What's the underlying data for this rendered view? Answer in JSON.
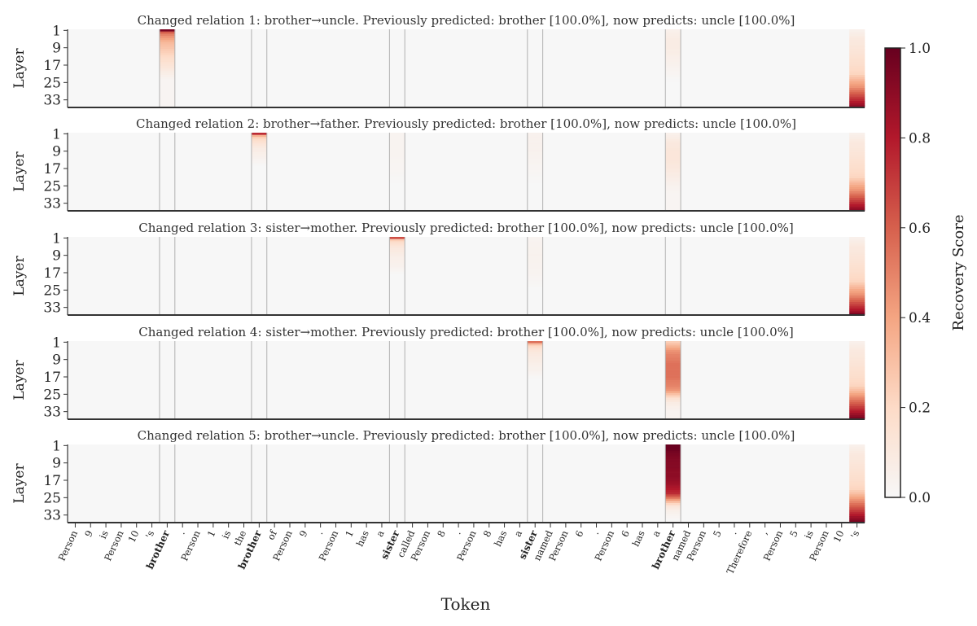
{
  "colorbar": {
    "label": "Recovery Score",
    "ticks": [
      "0.0",
      "0.2",
      "0.4",
      "0.6",
      "0.8",
      "1.0"
    ],
    "tick_values": [
      0,
      0.2,
      0.4,
      0.6,
      0.8,
      1.0
    ],
    "colors": [
      "#f7f7f7",
      "#fddbc7",
      "#f4a582",
      "#d6604d",
      "#b2182b",
      "#67001f"
    ]
  },
  "chart_data": {
    "type": "heatmap",
    "xlabel": "Token",
    "ylabel": "Layer",
    "ytick_labels": [
      "1",
      "9",
      "17",
      "25",
      "33"
    ],
    "num_layers": 36,
    "tokens": [
      "Person",
      "9",
      "is",
      "Person",
      "10",
      "'s",
      "brother",
      ".",
      "Person",
      "1",
      "is",
      "the",
      "brother",
      "of",
      "Person",
      "9",
      ".",
      "Person",
      "1",
      "has",
      "a",
      "sister",
      "called",
      "Person",
      "8",
      ".",
      "Person",
      "8",
      "has",
      "a",
      "sister",
      "named",
      "Person",
      "6",
      ".",
      "Person",
      "6",
      "has",
      "a",
      "brother",
      "named",
      "Person",
      "5",
      ".",
      "Therefore",
      ",",
      "Person",
      "5",
      "is",
      "Person",
      "10",
      "'s"
    ],
    "bold_token_indices": [
      6,
      12,
      21,
      30,
      39
    ],
    "separator_token_indices": [
      6,
      12,
      21,
      30,
      39
    ],
    "value_range": [
      0,
      1
    ],
    "panels": [
      {
        "title": "Changed relation 1: brother→uncle. Previously predicted: brother [100.0%], now predicts: uncle [100.0%]",
        "columns": [
          {
            "token_index": 6,
            "layers": [
              1,
              2,
              3,
              4,
              5,
              6,
              7,
              8,
              9,
              10,
              12,
              14,
              16,
              18,
              20,
              22,
              24
            ],
            "values": [
              0.95,
              0.6,
              0.5,
              0.45,
              0.4,
              0.35,
              0.32,
              0.3,
              0.28,
              0.26,
              0.22,
              0.18,
              0.15,
              0.12,
              0.08,
              0.05,
              0.02
            ]
          },
          {
            "token_index": 39,
            "layers": [
              1,
              5,
              9,
              13,
              17,
              21,
              25
            ],
            "values": [
              0.05,
              0.08,
              0.08,
              0.06,
              0.04,
              0.02,
              0.0
            ]
          },
          {
            "token_index": 51,
            "layers": [
              1,
              5,
              9,
              13,
              17,
              21,
              23,
              25,
              27,
              29,
              31,
              33,
              35,
              36
            ],
            "values": [
              0.05,
              0.1,
              0.12,
              0.15,
              0.18,
              0.22,
              0.3,
              0.38,
              0.45,
              0.55,
              0.65,
              0.75,
              0.85,
              0.9
            ]
          }
        ]
      },
      {
        "title": "Changed relation 2: brother→father. Previously predicted: brother [100.0%], now predicts: uncle [100.0%]",
        "columns": [
          {
            "token_index": 12,
            "layers": [
              1,
              2,
              3,
              4,
              5,
              6,
              7,
              8,
              10,
              12,
              14,
              16
            ],
            "values": [
              0.75,
              0.35,
              0.22,
              0.18,
              0.15,
              0.12,
              0.1,
              0.08,
              0.06,
              0.04,
              0.02,
              0.0
            ]
          },
          {
            "token_index": 21,
            "layers": [
              1,
              9,
              17,
              25
            ],
            "values": [
              0.03,
              0.03,
              0.02,
              0.0
            ]
          },
          {
            "token_index": 30,
            "layers": [
              1,
              9,
              17,
              25
            ],
            "values": [
              0.04,
              0.04,
              0.02,
              0.0
            ]
          },
          {
            "token_index": 39,
            "layers": [
              1,
              5,
              9,
              13,
              17,
              21,
              25,
              29
            ],
            "values": [
              0.05,
              0.1,
              0.12,
              0.12,
              0.1,
              0.07,
              0.04,
              0.02
            ]
          },
          {
            "token_index": 51,
            "layers": [
              1,
              5,
              9,
              13,
              17,
              21,
              23,
              25,
              27,
              29,
              31,
              33,
              35,
              36
            ],
            "values": [
              0.05,
              0.1,
              0.12,
              0.15,
              0.18,
              0.22,
              0.3,
              0.38,
              0.45,
              0.55,
              0.65,
              0.75,
              0.85,
              0.9
            ]
          }
        ]
      },
      {
        "title": "Changed relation 3: sister→mother. Previously predicted: brother [100.0%], now predicts: uncle [100.0%]",
        "columns": [
          {
            "token_index": 21,
            "layers": [
              1,
              2,
              3,
              4,
              5,
              6,
              7,
              8,
              10,
              12,
              14,
              16,
              18
            ],
            "values": [
              0.65,
              0.25,
              0.18,
              0.15,
              0.12,
              0.1,
              0.09,
              0.08,
              0.06,
              0.05,
              0.04,
              0.02,
              0.0
            ]
          },
          {
            "token_index": 30,
            "layers": [
              1,
              9,
              17,
              25
            ],
            "values": [
              0.03,
              0.04,
              0.03,
              0.0
            ]
          },
          {
            "token_index": 51,
            "layers": [
              1,
              5,
              9,
              13,
              17,
              21,
              23,
              25,
              27,
              29,
              31,
              33,
              35,
              36
            ],
            "values": [
              0.05,
              0.1,
              0.12,
              0.15,
              0.18,
              0.22,
              0.3,
              0.38,
              0.45,
              0.55,
              0.65,
              0.75,
              0.85,
              0.95
            ]
          }
        ]
      },
      {
        "title": "Changed relation 4: sister→mother. Previously predicted: brother [100.0%], now predicts: uncle [100.0%]",
        "columns": [
          {
            "token_index": 30,
            "layers": [
              1,
              2,
              3,
              4,
              5,
              6,
              7,
              8,
              10,
              12,
              14,
              16,
              18
            ],
            "values": [
              0.55,
              0.3,
              0.2,
              0.15,
              0.12,
              0.1,
              0.09,
              0.08,
              0.07,
              0.05,
              0.04,
              0.02,
              0.0
            ]
          },
          {
            "token_index": 39,
            "layers": [
              1,
              3,
              5,
              7,
              9,
              11,
              13,
              15,
              17,
              19,
              21,
              23,
              25,
              27,
              29,
              31,
              33
            ],
            "values": [
              0.25,
              0.35,
              0.45,
              0.5,
              0.52,
              0.55,
              0.55,
              0.55,
              0.55,
              0.52,
              0.5,
              0.45,
              0.3,
              0.15,
              0.08,
              0.05,
              0.03
            ]
          },
          {
            "token_index": 51,
            "layers": [
              1,
              5,
              9,
              13,
              17,
              21,
              23,
              25,
              27,
              29,
              31,
              33,
              35,
              36
            ],
            "values": [
              0.05,
              0.1,
              0.12,
              0.15,
              0.18,
              0.22,
              0.3,
              0.4,
              0.5,
              0.6,
              0.7,
              0.8,
              0.9,
              0.95
            ]
          }
        ]
      },
      {
        "title": "Changed relation 5: brother→uncle. Previously predicted: brother [100.0%], now predicts: uncle [100.0%]",
        "columns": [
          {
            "token_index": 39,
            "layers": [
              1,
              3,
              5,
              7,
              9,
              11,
              13,
              15,
              17,
              19,
              21,
              23,
              25,
              27,
              29,
              31,
              33,
              35
            ],
            "values": [
              1.0,
              0.98,
              0.95,
              0.93,
              0.92,
              0.92,
              0.9,
              0.9,
              0.88,
              0.85,
              0.8,
              0.75,
              0.55,
              0.3,
              0.12,
              0.06,
              0.03,
              0.01
            ]
          },
          {
            "token_index": 51,
            "layers": [
              1,
              5,
              9,
              13,
              17,
              21,
              23,
              25,
              27,
              29,
              31,
              33,
              35,
              36
            ],
            "values": [
              0.05,
              0.1,
              0.12,
              0.15,
              0.18,
              0.22,
              0.3,
              0.4,
              0.5,
              0.6,
              0.7,
              0.8,
              0.9,
              0.95
            ]
          }
        ]
      }
    ]
  }
}
